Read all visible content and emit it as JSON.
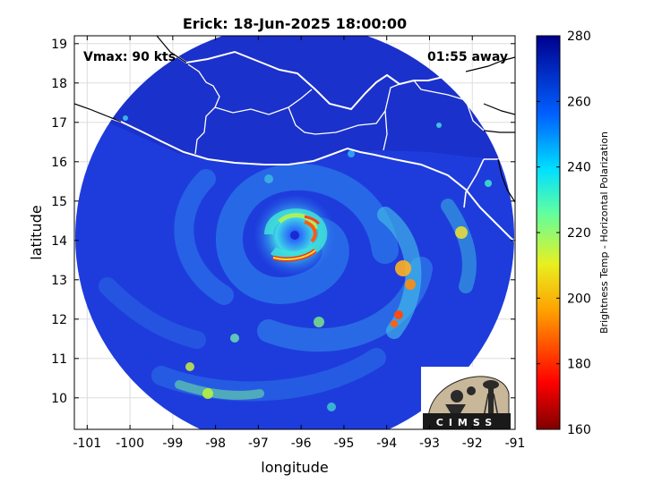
{
  "title": "Erick: 18-Jun-2025 18:00:00",
  "storm": {
    "name": "Erick",
    "vmax_label": "Vmax: 90 kts",
    "time_offset_label": "01:55 away",
    "center": {
      "lon": -96.1,
      "lat": 14.15
    }
  },
  "map": {
    "xlabel": "longitude",
    "ylabel": "latitude",
    "x_ticks": [
      -101,
      -100,
      -99,
      -98,
      -97,
      -96,
      -95,
      -94,
      -93,
      -92,
      -91
    ],
    "y_ticks": [
      10,
      11,
      12,
      13,
      14,
      15,
      16,
      17,
      18,
      19
    ],
    "x_range": [
      -101.3,
      -91
    ],
    "y_range": [
      9.2,
      19.2
    ],
    "grid": true,
    "swath_color": "#1e3cdc",
    "coast_color": "#ffffff",
    "border_color": "#000000"
  },
  "colorbar": {
    "label": "Brightness Temp - Horizontal Polarization",
    "ticks": [
      160,
      180,
      200,
      220,
      240,
      260,
      280
    ],
    "range": [
      160,
      280
    ],
    "colormap": "jet"
  },
  "logo": {
    "text": "CIMSS"
  }
}
